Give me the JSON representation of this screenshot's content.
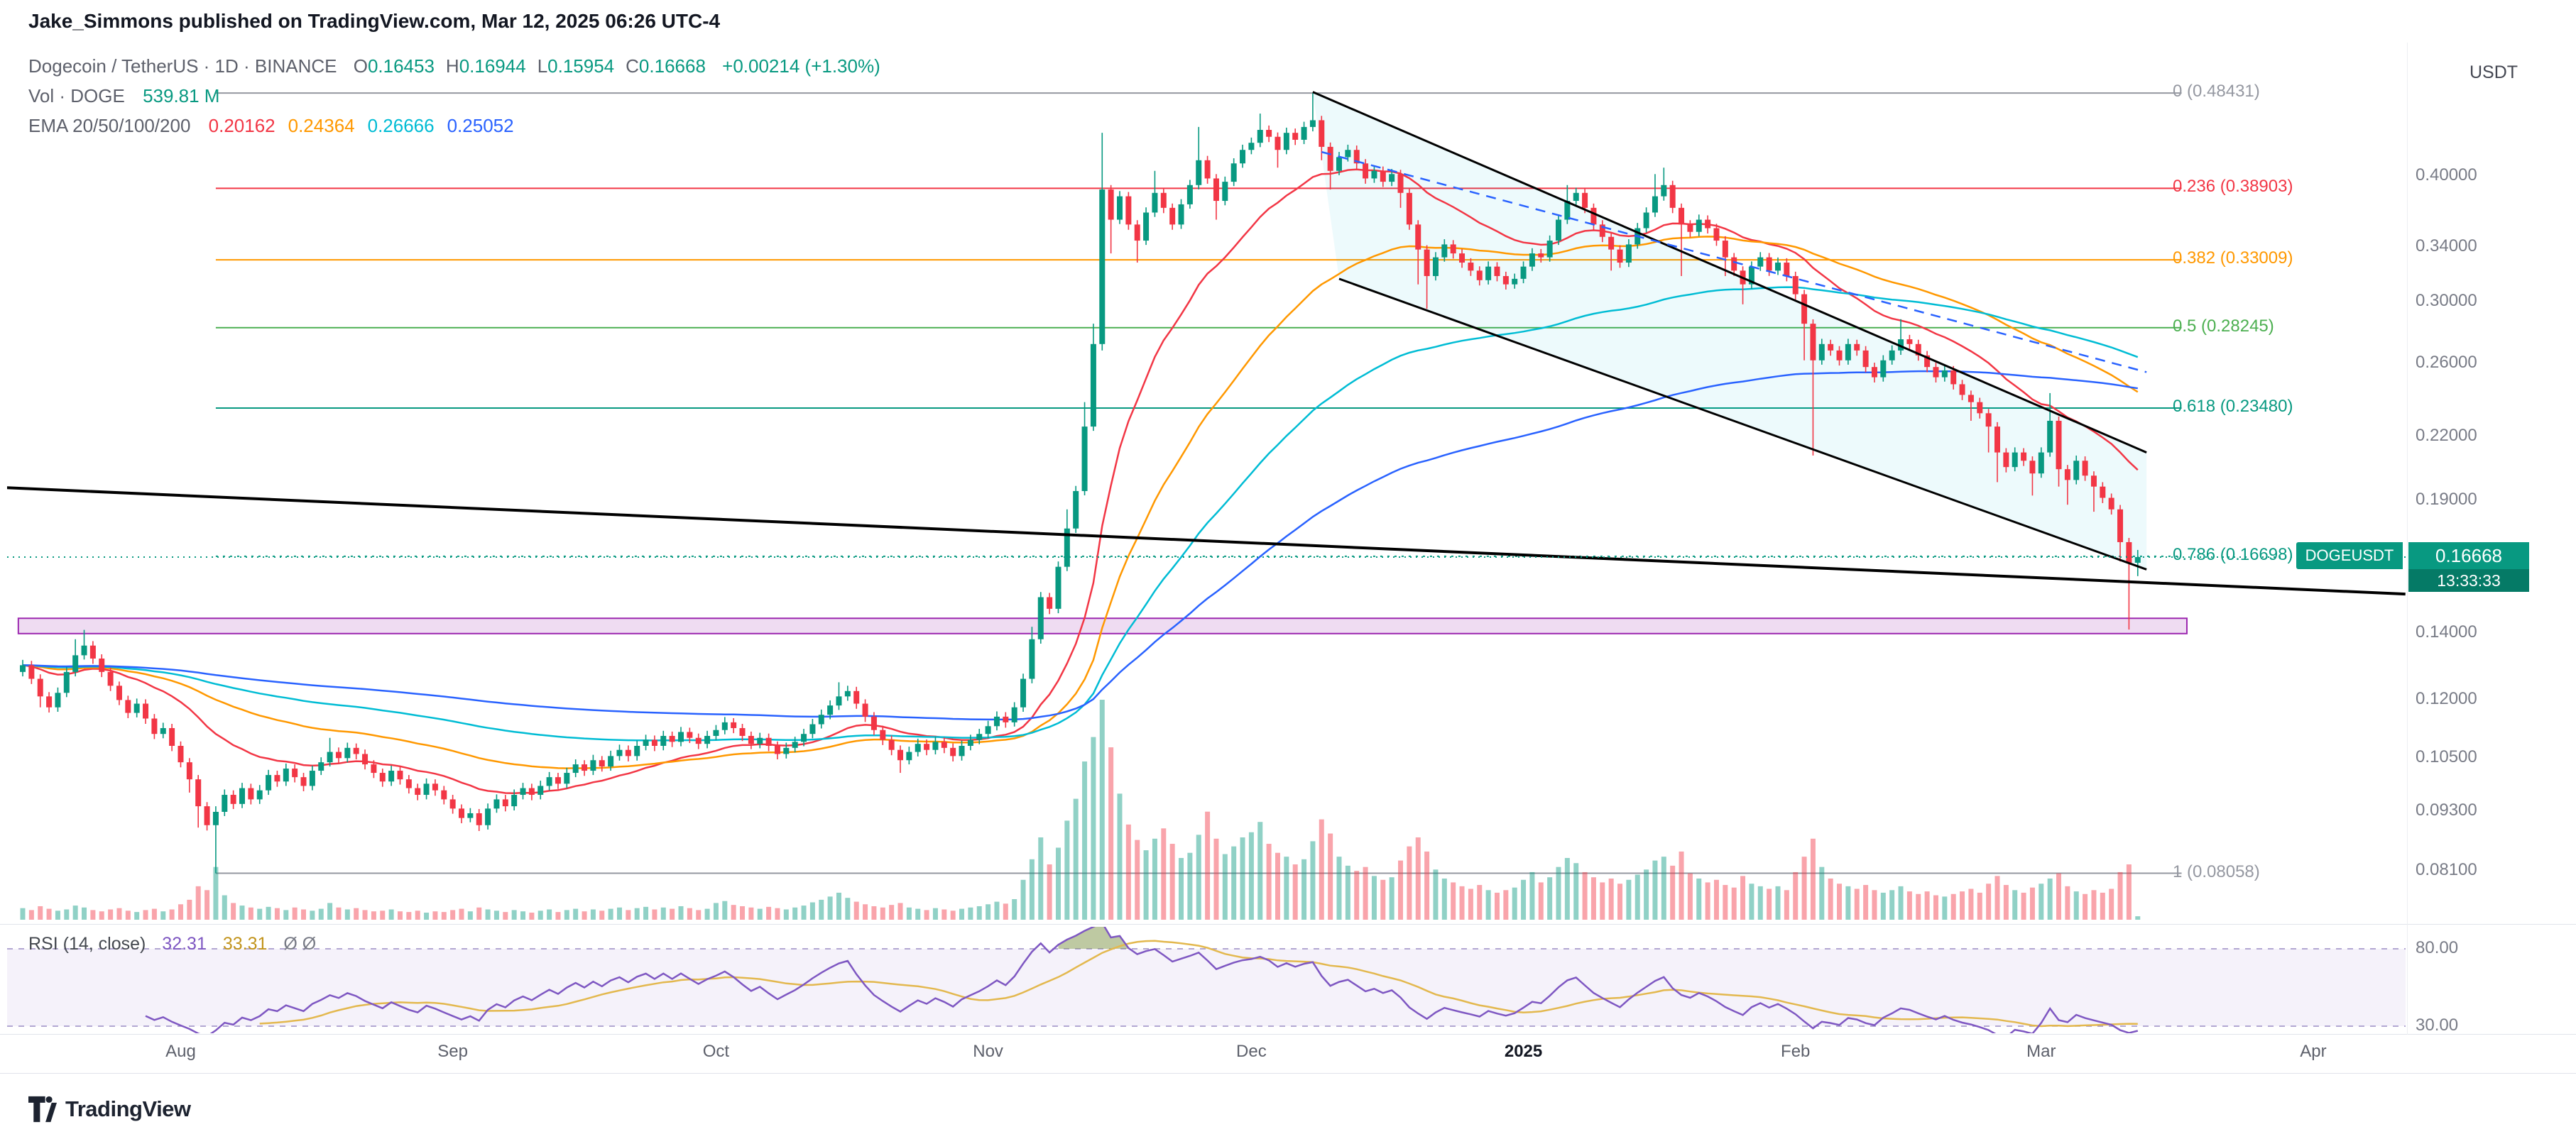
{
  "attribution": "Jake_Simmons published on TradingView.com, Mar 12, 2025 06:26 UTC-4",
  "header": {
    "title": "Dogecoin / TetherUS · 1D · BINANCE",
    "ohlc": [
      {
        "k": "O",
        "v": "0.16453"
      },
      {
        "k": "H",
        "v": "0.16944"
      },
      {
        "k": "L",
        "v": "0.15954"
      },
      {
        "k": "C",
        "v": "0.16668"
      }
    ],
    "change": "+0.00214 (+1.30%)",
    "value_color": "#089981"
  },
  "volume_row": {
    "label": "Vol · DOGE",
    "value": "539.81 M",
    "value_color": "#089981"
  },
  "ema_row": {
    "label": "EMA 20/50/100/200",
    "values": [
      {
        "v": "0.20162",
        "color": "#f23645"
      },
      {
        "v": "0.24364",
        "color": "#ff9800"
      },
      {
        "v": "0.26666",
        "color": "#00bcd4"
      },
      {
        "v": "0.25052",
        "color": "#2962ff"
      }
    ]
  },
  "price_axis": {
    "currency_label": "USDT",
    "ticks": [
      {
        "label": "0.40000",
        "value": 0.4
      },
      {
        "label": "0.34000",
        "value": 0.34
      },
      {
        "label": "0.30000",
        "value": 0.3
      },
      {
        "label": "0.26000",
        "value": 0.26
      },
      {
        "label": "0.22000",
        "value": 0.22
      },
      {
        "label": "0.19000",
        "value": 0.19
      },
      {
        "label": "0.14000",
        "value": 0.14
      },
      {
        "label": "0.12000",
        "value": 0.12
      },
      {
        "label": "0.10500",
        "value": 0.105
      },
      {
        "label": "0.09300",
        "value": 0.093
      },
      {
        "label": "0.08100",
        "value": 0.081
      }
    ],
    "last": {
      "symbol": "DOGEUSDT",
      "price": "0.16668",
      "countdown": "13:33:33",
      "color": "#089981"
    }
  },
  "time_axis": {
    "months": [
      {
        "label": "Aug",
        "index": 18
      },
      {
        "label": "Sep",
        "index": 49
      },
      {
        "label": "Oct",
        "index": 79
      },
      {
        "label": "Nov",
        "index": 110
      },
      {
        "label": "Dec",
        "index": 140
      },
      {
        "label": "2025",
        "index": 171,
        "bold": true
      },
      {
        "label": "Feb",
        "index": 202
      },
      {
        "label": "Mar",
        "index": 230
      },
      {
        "label": "Apr",
        "index": 261
      }
    ]
  },
  "rsi_panel": {
    "label": "RSI (14, close)",
    "value": "32.31",
    "value_color": "#7e57c2",
    "ma_value": "33.31",
    "ma_color": "#c2941c",
    "hidden": "Ø Ø",
    "ticks": [
      {
        "label": "80.00",
        "value": 80
      },
      {
        "label": "30.00",
        "value": 30
      }
    ],
    "band_upper": 80,
    "band_lower": 30
  },
  "footer": {
    "logo": "TradingView"
  },
  "chart_data": {
    "type": "candlestick",
    "symbol": "DOGEUSDT",
    "exchange": "BINANCE",
    "timeframe": "1D",
    "start_date": "2024-07-14",
    "end_date": "2025-03-12",
    "price_scale": "log",
    "price_anchor": 0.16668,
    "first_open": 0.128,
    "closes": [
      0.13,
      0.126,
      0.121,
      0.118,
      0.122,
      0.128,
      0.133,
      0.136,
      0.132,
      0.128,
      0.124,
      0.12,
      0.1165,
      0.119,
      0.115,
      0.111,
      0.1125,
      0.108,
      0.104,
      0.1,
      0.094,
      0.09,
      0.0928,
      0.0965,
      0.0945,
      0.098,
      0.0955,
      0.0975,
      0.101,
      0.0995,
      0.1025,
      0.1005,
      0.0985,
      0.102,
      0.104,
      0.1065,
      0.105,
      0.1075,
      0.106,
      0.1035,
      0.1015,
      0.0995,
      0.102,
      0.1,
      0.098,
      0.0965,
      0.099,
      0.0975,
      0.0955,
      0.0935,
      0.0915,
      0.0925,
      0.09,
      0.0935,
      0.0955,
      0.094,
      0.0965,
      0.098,
      0.0965,
      0.0985,
      0.1005,
      0.099,
      0.1015,
      0.1035,
      0.102,
      0.1045,
      0.103,
      0.1055,
      0.107,
      0.1055,
      0.108,
      0.1095,
      0.108,
      0.1105,
      0.109,
      0.1115,
      0.11,
      0.1085,
      0.1105,
      0.112,
      0.114,
      0.1125,
      0.1105,
      0.1085,
      0.11,
      0.108,
      0.106,
      0.1075,
      0.109,
      0.111,
      0.1135,
      0.116,
      0.1185,
      0.121,
      0.1225,
      0.119,
      0.1155,
      0.112,
      0.1095,
      0.107,
      0.1045,
      0.1065,
      0.1085,
      0.107,
      0.109,
      0.1075,
      0.1055,
      0.108,
      0.1095,
      0.111,
      0.113,
      0.1155,
      0.114,
      0.118,
      0.126,
      0.138,
      0.152,
      0.148,
      0.163,
      0.178,
      0.194,
      0.225,
      0.272,
      0.388,
      0.362,
      0.382,
      0.358,
      0.345,
      0.368,
      0.385,
      0.372,
      0.358,
      0.375,
      0.392,
      0.415,
      0.398,
      0.378,
      0.395,
      0.412,
      0.425,
      0.432,
      0.445,
      0.438,
      0.425,
      0.442,
      0.435,
      0.448,
      0.455,
      0.428,
      0.405,
      0.418,
      0.425,
      0.412,
      0.398,
      0.405,
      0.395,
      0.402,
      0.385,
      0.358,
      0.338,
      0.318,
      0.332,
      0.342,
      0.335,
      0.328,
      0.322,
      0.315,
      0.325,
      0.318,
      0.312,
      0.316,
      0.325,
      0.335,
      0.332,
      0.345,
      0.362,
      0.378,
      0.385,
      0.372,
      0.358,
      0.348,
      0.338,
      0.328,
      0.342,
      0.355,
      0.368,
      0.382,
      0.392,
      0.372,
      0.358,
      0.352,
      0.362,
      0.355,
      0.345,
      0.332,
      0.322,
      0.312,
      0.325,
      0.332,
      0.322,
      0.328,
      0.318,
      0.305,
      0.285,
      0.262,
      0.272,
      0.268,
      0.262,
      0.272,
      0.268,
      0.258,
      0.252,
      0.262,
      0.268,
      0.275,
      0.272,
      0.265,
      0.258,
      0.252,
      0.256,
      0.248,
      0.242,
      0.238,
      0.232,
      0.225,
      0.212,
      0.205,
      0.212,
      0.208,
      0.202,
      0.212,
      0.228,
      0.204,
      0.199,
      0.208,
      0.201,
      0.196,
      0.191,
      0.186,
      0.1725,
      0.16453,
      0.16668
    ],
    "highs": [
      0.1316,
      0.1313,
      0.1273,
      0.1222,
      0.1235,
      0.1295,
      0.138,
      0.141,
      0.1374,
      0.1333,
      0.1293,
      0.1252,
      0.1212,
      0.1204,
      0.1202,
      0.1162,
      0.1139,
      0.1136,
      0.1091,
      0.105,
      0.101,
      0.0949,
      0.094,
      0.0977,
      0.0975,
      0.0992,
      0.099,
      0.0987,
      0.1022,
      0.102,
      0.1037,
      0.1035,
      0.1015,
      0.1032,
      0.1052,
      0.11,
      0.1076,
      0.1088,
      0.1086,
      0.1071,
      0.1045,
      0.1025,
      0.1032,
      0.103,
      0.101,
      0.099,
      0.1002,
      0.1,
      0.0985,
      0.0965,
      0.0944,
      0.0936,
      0.0934,
      0.0946,
      0.0966,
      0.0965,
      0.0977,
      0.0992,
      0.099,
      0.0997,
      0.1017,
      0.1015,
      0.1027,
      0.1047,
      0.1045,
      0.1058,
      0.1055,
      0.1068,
      0.1083,
      0.1081,
      0.1093,
      0.1108,
      0.1106,
      0.1118,
      0.1116,
      0.1128,
      0.1126,
      0.1111,
      0.1118,
      0.1133,
      0.1154,
      0.1151,
      0.1136,
      0.1116,
      0.1113,
      0.1111,
      0.1091,
      0.1088,
      0.1103,
      0.1123,
      0.1149,
      0.1174,
      0.1199,
      0.125,
      0.124,
      0.1237,
      0.1202,
      0.1167,
      0.1131,
      0.1106,
      0.1081,
      0.1078,
      0.1098,
      0.1096,
      0.1103,
      0.1101,
      0.1086,
      0.1093,
      0.1108,
      0.1123,
      0.1144,
      0.1169,
      0.1167,
      0.1194,
      0.1275,
      0.142,
      0.1538,
      0.1535,
      0.165,
      0.186,
      0.1963,
      0.238,
      0.285,
      0.442,
      0.392,
      0.3866,
      0.3858,
      0.3616,
      0.3724,
      0.405,
      0.3889,
      0.3757,
      0.3795,
      0.3967,
      0.448,
      0.4192,
      0.402,
      0.3997,
      0.4169,
      0.4301,
      0.4372,
      0.462,
      0.4495,
      0.4424,
      0.4473,
      0.4464,
      0.4534,
      0.48431,
      0.4596,
      0.4323,
      0.423,
      0.4301,
      0.4293,
      0.4161,
      0.4099,
      0.4091,
      0.4068,
      0.406,
      0.3889,
      0.3616,
      0.3414,
      0.336,
      0.3461,
      0.3454,
      0.3384,
      0.3313,
      0.3252,
      0.3289,
      0.3283,
      0.3212,
      0.3198,
      0.3289,
      0.339,
      0.3384,
      0.3491,
      0.3663,
      0.392,
      0.3896,
      0.3889,
      0.3757,
      0.3616,
      0.3515,
      0.3414,
      0.3461,
      0.3593,
      0.3724,
      0.402,
      0.408,
      0.3959,
      0.3757,
      0.3616,
      0.3663,
      0.3656,
      0.3586,
      0.3485,
      0.3353,
      0.3252,
      0.3289,
      0.336,
      0.3353,
      0.3319,
      0.3313,
      0.3212,
      0.3081,
      0.2879,
      0.2753,
      0.2747,
      0.2707,
      0.2753,
      0.2747,
      0.2707,
      0.2606,
      0.2651,
      0.2712,
      0.288,
      0.2778,
      0.2747,
      0.2677,
      0.2606,
      0.2591,
      0.2586,
      0.2505,
      0.2444,
      0.2404,
      0.2343,
      0.2273,
      0.2141,
      0.2145,
      0.2141,
      0.2101,
      0.2145,
      0.243,
      0.2303,
      0.206,
      0.2105,
      0.2101,
      0.203,
      0.198,
      0.1929,
      0.1879,
      0.1742,
      0.16944
    ],
    "lows": [
      0.1267,
      0.1245,
      0.118,
      0.1166,
      0.1168,
      0.1208,
      0.1267,
      0.1317,
      0.1304,
      0.1265,
      0.1225,
      0.1186,
      0.1151,
      0.1153,
      0.1136,
      0.1097,
      0.1099,
      0.1067,
      0.1028,
      0.097,
      0.0895,
      0.0889,
      0.08058,
      0.0919,
      0.0934,
      0.0936,
      0.0944,
      0.0945,
      0.0965,
      0.0983,
      0.0985,
      0.0993,
      0.0973,
      0.0975,
      0.101,
      0.103,
      0.1037,
      0.104,
      0.1047,
      0.1023,
      0.1003,
      0.0983,
      0.0985,
      0.0988,
      0.0968,
      0.0953,
      0.0955,
      0.0963,
      0.0944,
      0.0924,
      0.0904,
      0.0906,
      0.0888,
      0.0891,
      0.0926,
      0.0929,
      0.0931,
      0.0955,
      0.0953,
      0.0955,
      0.0975,
      0.0978,
      0.098,
      0.1005,
      0.1008,
      0.101,
      0.1018,
      0.102,
      0.1044,
      0.1042,
      0.1044,
      0.1069,
      0.1067,
      0.1069,
      0.1077,
      0.1079,
      0.1087,
      0.1072,
      0.1074,
      0.1094,
      0.1109,
      0.1112,
      0.1092,
      0.1072,
      0.1074,
      0.1067,
      0.1047,
      0.1049,
      0.1064,
      0.1079,
      0.1099,
      0.1124,
      0.1148,
      0.1173,
      0.1198,
      0.1176,
      0.1141,
      0.1107,
      0.1082,
      0.1057,
      0.1015,
      0.1035,
      0.1054,
      0.1057,
      0.1059,
      0.1062,
      0.1042,
      0.1044,
      0.1069,
      0.1084,
      0.1099,
      0.1119,
      0.1126,
      0.1129,
      0.1168,
      0.1247,
      0.1366,
      0.1462,
      0.1465,
      0.1614,
      0.1762,
      0.1921,
      0.2228,
      0.268,
      0.335,
      0.3584,
      0.3537,
      0.328,
      0.3416,
      0.3643,
      0.3675,
      0.3537,
      0.3544,
      0.3713,
      0.3881,
      0.3932,
      0.362,
      0.3742,
      0.3911,
      0.4079,
      0.4208,
      0.4277,
      0.4327,
      0.408,
      0.4208,
      0.4298,
      0.4307,
      0.4435,
      0.415,
      0.388,
      0.401,
      0.4138,
      0.4071,
      0.3932,
      0.394,
      0.3903,
      0.3911,
      0.372,
      0.3537,
      0.312,
      0.295,
      0.3148,
      0.3287,
      0.331,
      0.3241,
      0.3181,
      0.3112,
      0.3119,
      0.3142,
      0.3083,
      0.3089,
      0.3128,
      0.3218,
      0.328,
      0.3287,
      0.3416,
      0.3584,
      0.3742,
      0.3675,
      0.3537,
      0.3438,
      0.322,
      0.3241,
      0.3247,
      0.3386,
      0.3515,
      0.3643,
      0.3782,
      0.3675,
      0.318,
      0.3477,
      0.3485,
      0.3507,
      0.3409,
      0.318,
      0.3181,
      0.298,
      0.3089,
      0.3218,
      0.3181,
      0.3188,
      0.3142,
      0.3013,
      0.262,
      0.2105,
      0.2594,
      0.2648,
      0.2589,
      0.2594,
      0.2648,
      0.2549,
      0.249,
      0.2495,
      0.2594,
      0.2653,
      0.2687,
      0.2618,
      0.2549,
      0.249,
      0.2495,
      0.245,
      0.2391,
      0.228,
      0.2292,
      0.212,
      0.198,
      0.2025,
      0.203,
      0.2055,
      0.192,
      0.2,
      0.2099,
      0.196,
      0.188,
      0.197,
      0.1986,
      0.185,
      0.1887,
      0.1838,
      0.165,
      0.1411,
      0.15954
    ],
    "volumes_m": [
      1800,
      1500,
      2100,
      1700,
      1400,
      1600,
      2200,
      1900,
      1500,
      1300,
      1600,
      1800,
      1400,
      1200,
      1500,
      1700,
      1300,
      1600,
      2400,
      3100,
      5200,
      4600,
      8200,
      3800,
      2600,
      2200,
      1900,
      1700,
      2000,
      1800,
      1500,
      1900,
      1600,
      1400,
      1700,
      2600,
      1900,
      1600,
      1800,
      1500,
      1300,
      1400,
      1600,
      1300,
      1200,
      1400,
      1100,
      1300,
      1200,
      1500,
      1700,
      1300,
      1900,
      1600,
      1400,
      1200,
      1500,
      1300,
      1100,
      1400,
      1600,
      1200,
      1500,
      1700,
      1300,
      1600,
      1400,
      1700,
      1900,
      1500,
      1800,
      2000,
      1600,
      1900,
      1700,
      2100,
      1800,
      1500,
      1700,
      2600,
      2900,
      2300,
      2100,
      1900,
      1700,
      2000,
      1800,
      1600,
      1900,
      2200,
      2700,
      3100,
      3600,
      4200,
      3400,
      2800,
      2400,
      2100,
      1900,
      2300,
      2600,
      1900,
      1700,
      1500,
      1800,
      1600,
      1400,
      1700,
      1900,
      2100,
      2400,
      2800,
      2500,
      3200,
      6200,
      9400,
      12800,
      8600,
      11200,
      15400,
      18800,
      24600,
      28400,
      34200,
      26800,
      19600,
      14800,
      12400,
      10800,
      12600,
      14200,
      11800,
      9600,
      10400,
      13200,
      16800,
      12600,
      10200,
      11400,
      12800,
      13600,
      15200,
      11800,
      10400,
      9800,
      8600,
      9400,
      12200,
      15600,
      13400,
      9800,
      8400,
      7600,
      8200,
      6800,
      6200,
      6600,
      9200,
      11400,
      12800,
      10600,
      7800,
      6400,
      5800,
      5200,
      4800,
      5400,
      4600,
      4200,
      4600,
      5000,
      6200,
      7400,
      5800,
      6600,
      8200,
      9600,
      8800,
      7400,
      6600,
      5800,
      6400,
      5600,
      6200,
      7000,
      7800,
      9200,
      9800,
      8400,
      10600,
      7200,
      6400,
      5800,
      6200,
      5400,
      5000,
      6800,
      5600,
      5200,
      4800,
      5200,
      4600,
      7400,
      9800,
      12600,
      8200,
      6400,
      5600,
      5200,
      4800,
      5400,
      4600,
      4200,
      4600,
      5200,
      4400,
      4000,
      4400,
      3800,
      3600,
      4000,
      4400,
      4800,
      4200,
      5600,
      6800,
      5400,
      4600,
      4200,
      5000,
      5600,
      6400,
      7200,
      5200,
      4400,
      4000,
      4600,
      4200,
      4800,
      7400,
      8600,
      539.81
    ],
    "emas": {
      "periods": [
        20,
        50,
        100,
        200
      ],
      "colors": [
        "#f23645",
        "#ff9800",
        "#00bcd4",
        "#2962ff"
      ]
    },
    "colors": {
      "up": "#089981",
      "down": "#f23645",
      "vol_up": "rgba(8,153,129,0.45)",
      "vol_down": "rgba(242,54,69,0.45)"
    },
    "rsi": {
      "period": 14,
      "color": "#7e57c2",
      "ma_color": "#e3b84e",
      "overbought_fill": "rgba(125,148,70,0.5)"
    },
    "fib": {
      "start_index": 22,
      "end_index": 246,
      "levels": [
        {
          "label": "0 (0.48431)",
          "value": 0.48431,
          "color": "#9598a1",
          "style": "solid"
        },
        {
          "label": "0.236 (0.38903)",
          "value": 0.38903,
          "color": "#f23645",
          "style": "solid"
        },
        {
          "label": "0.382 (0.33009)",
          "value": 0.33009,
          "color": "#ff9800",
          "style": "solid"
        },
        {
          "label": "0.5 (0.28245)",
          "value": 0.28245,
          "color": "#4caf50",
          "style": "solid"
        },
        {
          "label": "0.618 (0.23480)",
          "value": 0.2348,
          "color": "#089981",
          "style": "solid"
        },
        {
          "label": "0.786 (0.16698)",
          "value": 0.16698,
          "color": "#089981",
          "style": "dotted"
        },
        {
          "label": "1 (0.08058)",
          "value": 0.08058,
          "color": "#9598a1",
          "style": "solid"
        }
      ]
    },
    "drawings": {
      "support_zone": {
        "from_index": -0.5,
        "to_index": 246.6,
        "price_top": 0.1448,
        "price_bottom": 0.1398,
        "fill": "rgba(156,39,176,0.16)",
        "stroke": "#9c27b0"
      },
      "trendline_major": {
        "from": [
          -1.8,
          0.1955
        ],
        "to": [
          271.5,
          0.1531
        ],
        "color": "#000000",
        "width": 4
      },
      "channel_upper": {
        "from": [
          147,
          0.4855
        ],
        "to": [
          242,
          0.212
        ],
        "color": "#000000",
        "width": 3
      },
      "channel_lower": {
        "from": [
          150,
          0.316
        ],
        "to": [
          242,
          0.162
        ],
        "color": "#000000",
        "width": 3
      },
      "channel_fill": "rgba(0,188,212,0.07)",
      "trendline_dashed": {
        "from": [
          148,
          0.423
        ],
        "to": [
          242,
          0.255
        ],
        "color": "#2962ff",
        "width": 2.5,
        "dash": "14,10"
      }
    },
    "last_price_line": {
      "price": 0.16668,
      "color": "#089981"
    }
  }
}
